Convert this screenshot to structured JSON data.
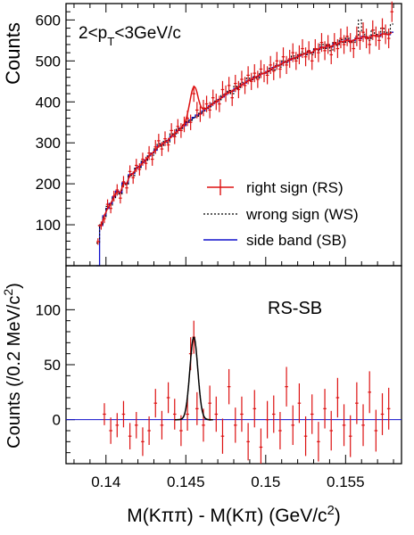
{
  "chart_data": [
    {
      "type": "line",
      "panel": "top",
      "annotation": "2<p_T<3GeV/c",
      "ylabel": "Counts",
      "xlabel": "",
      "xlim": [
        0.1375,
        0.1585
      ],
      "ylim": [
        0,
        640
      ],
      "yticks": [
        100,
        200,
        300,
        400,
        500,
        600
      ],
      "grid": false,
      "legend_position": "center-right",
      "legend": [
        {
          "label": "right sign (RS)",
          "color": "#dd1111",
          "style": "error-bars"
        },
        {
          "label": "wrong sign (WS)",
          "color": "#000000",
          "style": "dotted"
        },
        {
          "label": "side band (SB)",
          "color": "#1111cc",
          "style": "solid"
        }
      ],
      "x": [
        0.1395,
        0.1397,
        0.1399,
        0.1401,
        0.1403,
        0.1405,
        0.1407,
        0.1409,
        0.1411,
        0.1413,
        0.1415,
        0.1417,
        0.1419,
        0.1421,
        0.1423,
        0.1425,
        0.1427,
        0.1429,
        0.1431,
        0.1433,
        0.1435,
        0.1437,
        0.1439,
        0.1441,
        0.1443,
        0.1445,
        0.1447,
        0.1449,
        0.1451,
        0.1453,
        0.1455,
        0.1457,
        0.1459,
        0.1461,
        0.1463,
        0.1465,
        0.1467,
        0.1469,
        0.1471,
        0.1473,
        0.1475,
        0.1477,
        0.1479,
        0.1481,
        0.1483,
        0.1485,
        0.1487,
        0.1489,
        0.1491,
        0.1493,
        0.1495,
        0.1497,
        0.1499,
        0.1501,
        0.1503,
        0.1505,
        0.1507,
        0.1509,
        0.1511,
        0.1513,
        0.1515,
        0.1517,
        0.1519,
        0.1521,
        0.1523,
        0.1525,
        0.1527,
        0.1529,
        0.1531,
        0.1533,
        0.1535,
        0.1537,
        0.1539,
        0.1541,
        0.1543,
        0.1545,
        0.1547,
        0.1549,
        0.1551,
        0.1553,
        0.1555,
        0.1557,
        0.1559,
        0.1561,
        0.1563,
        0.1565,
        0.1567,
        0.1569,
        0.1571,
        0.1573,
        0.1575,
        0.1577,
        0.1579
      ],
      "series": [
        {
          "name": "right sign (RS)",
          "color": "#dd1111",
          "values": [
            59,
            98,
            115,
            150,
            140,
            170,
            185,
            165,
            205,
            190,
            230,
            215,
            245,
            235,
            260,
            250,
            275,
            260,
            290,
            305,
            285,
            310,
            295,
            330,
            315,
            340,
            330,
            345,
            360,
            350,
            420,
            380,
            370,
            385,
            395,
            380,
            410,
            400,
            395,
            430,
            420,
            440,
            410,
            445,
            430,
            455,
            440,
            465,
            450,
            470,
            455,
            480,
            470,
            465,
            490,
            475,
            500,
            480,
            510,
            490,
            505,
            520,
            500,
            515,
            530,
            510,
            525,
            500,
            530,
            520,
            545,
            525,
            540,
            515,
            545,
            530,
            555,
            540,
            560,
            545,
            530,
            560,
            550,
            570,
            555,
            540,
            575,
            560,
            550,
            580,
            565,
            555,
            620
          ],
          "errors": [
            8,
            10,
            11,
            12,
            12,
            13,
            14,
            13,
            14,
            14,
            15,
            15,
            16,
            15,
            16,
            16,
            17,
            16,
            17,
            17,
            17,
            18,
            17,
            18,
            18,
            18,
            18,
            19,
            19,
            19,
            20,
            20,
            19,
            20,
            20,
            20,
            20,
            20,
            20,
            21,
            20,
            21,
            20,
            21,
            21,
            21,
            21,
            22,
            21,
            22,
            21,
            22,
            22,
            22,
            22,
            22,
            22,
            22,
            23,
            22,
            22,
            23,
            22,
            23,
            23,
            23,
            23,
            22,
            23,
            23,
            23,
            23,
            23,
            23,
            23,
            23,
            24,
            23,
            24,
            23,
            23,
            24,
            23,
            24,
            24,
            23,
            24,
            24,
            23,
            24,
            24,
            24,
            25
          ]
        },
        {
          "name": "wrong sign (WS)",
          "color": "#000000",
          "values": [
            55,
            100,
            118,
            145,
            148,
            165,
            180,
            175,
            200,
            198,
            220,
            220,
            240,
            240,
            255,
            255,
            270,
            270,
            285,
            298,
            292,
            305,
            300,
            322,
            318,
            335,
            335,
            345,
            352,
            355,
            360,
            365,
            372,
            378,
            385,
            388,
            398,
            402,
            405,
            418,
            420,
            428,
            420,
            438,
            432,
            448,
            445,
            458,
            452,
            462,
            458,
            472,
            470,
            470,
            482,
            478,
            492,
            485,
            500,
            495,
            505,
            512,
            505,
            515,
            522,
            515,
            525,
            515,
            530,
            525,
            540,
            530,
            540,
            525,
            545,
            538,
            552,
            545,
            560,
            548,
            545,
            560,
            600,
            570,
            560,
            550,
            575,
            565,
            560,
            580,
            570,
            565,
            590
          ]
        },
        {
          "name": "side band (SB)",
          "color": "#1111cc",
          "values": [
            0,
            98,
            122,
            140,
            152,
            168,
            182,
            178,
            202,
            200,
            222,
            225,
            238,
            242,
            252,
            258,
            268,
            275,
            282,
            292,
            296,
            302,
            306,
            316,
            322,
            330,
            336,
            342,
            350,
            356,
            362,
            368,
            372,
            378,
            384,
            390,
            396,
            400,
            406,
            412,
            418,
            424,
            426,
            432,
            436,
            442,
            446,
            452,
            454,
            460,
            462,
            468,
            470,
            474,
            478,
            484,
            488,
            490,
            496,
            498,
            502,
            506,
            508,
            512,
            516,
            518,
            522,
            520,
            528,
            528,
            534,
            532,
            538,
            534,
            542,
            540,
            548,
            546,
            552,
            548,
            550,
            556,
            554,
            560,
            558,
            556,
            562,
            562,
            560,
            566,
            566,
            564,
            570
          ]
        }
      ],
      "fit": {
        "name": "right sign (RS) fit",
        "color": "#dd1111",
        "peak_x": 0.1455,
        "peak_height": 75,
        "sigma": 0.00025
      }
    },
    {
      "type": "scatter",
      "panel": "bottom",
      "annotation": "RS-SB",
      "ylabel": "Counts (/0.2 MeV/c^2)",
      "xlabel": "M(Kππ) - M(Kπ) (GeV/c^2)",
      "xlim": [
        0.1375,
        0.1585
      ],
      "ylim": [
        -40,
        140
      ],
      "yticks": [
        0,
        50,
        100
      ],
      "xticks": [
        "0.14",
        "0.145",
        "0.15",
        "0.155"
      ],
      "xtick_values": [
        0.14,
        0.145,
        0.15,
        0.155
      ],
      "reference_line": {
        "y": 0,
        "color": "#1111cc"
      },
      "x": [
        0.1399,
        0.1403,
        0.1407,
        0.1411,
        0.1415,
        0.1419,
        0.1423,
        0.1427,
        0.1431,
        0.1435,
        0.1439,
        0.1443,
        0.1447,
        0.1451,
        0.1453,
        0.1455,
        0.1457,
        0.1461,
        0.1465,
        0.1469,
        0.1473,
        0.1477,
        0.1481,
        0.1485,
        0.1489,
        0.1493,
        0.1497,
        0.1501,
        0.1505,
        0.1509,
        0.1513,
        0.1517,
        0.1521,
        0.1525,
        0.1529,
        0.1533,
        0.1537,
        0.1541,
        0.1545,
        0.1549,
        0.1553,
        0.1557,
        0.1561,
        0.1565,
        0.1569,
        0.1573,
        0.1577
      ],
      "series": [
        {
          "name": "RS-SB",
          "color": "#dd1111",
          "values": [
            5,
            -10,
            -5,
            5,
            -15,
            -5,
            -20,
            -10,
            15,
            -5,
            20,
            5,
            -10,
            5,
            60,
            75,
            10,
            -5,
            15,
            5,
            -15,
            30,
            -5,
            5,
            -20,
            10,
            -25,
            0,
            5,
            -10,
            30,
            -5,
            15,
            -15,
            5,
            -20,
            10,
            -10,
            20,
            -5,
            -15,
            15,
            -5,
            25,
            -10,
            5,
            10
          ],
          "errors": [
            10,
            12,
            11,
            12,
            12,
            12,
            13,
            13,
            13,
            13,
            14,
            14,
            14,
            15,
            15,
            15,
            15,
            15,
            16,
            16,
            16,
            16,
            16,
            16,
            17,
            17,
            17,
            17,
            17,
            17,
            18,
            18,
            18,
            18,
            18,
            18,
            18,
            18,
            18,
            19,
            19,
            19,
            19,
            19,
            19,
            19,
            19
          ]
        }
      ],
      "fit": {
        "name": "Gaussian fit",
        "color": "#000000",
        "peak_x": 0.1455,
        "peak_height": 75,
        "sigma": 0.00025
      }
    }
  ]
}
